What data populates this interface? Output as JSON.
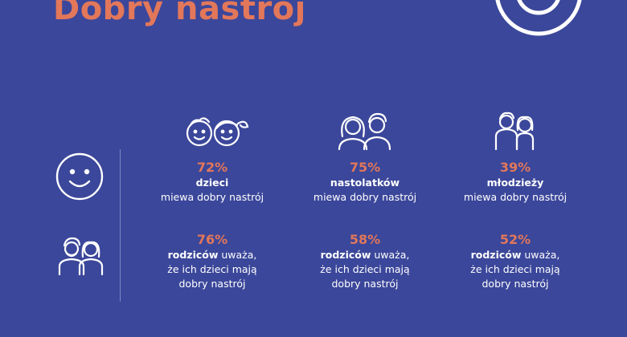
{
  "title": "Dobry nastrój",
  "columns": [
    {
      "icon": "kids-icon"
    },
    {
      "icon": "teenagers-icon"
    },
    {
      "icon": "young-adults-icon"
    }
  ],
  "rows": [
    {
      "icon": "smiley-icon",
      "cells": [
        {
          "pct": "72%",
          "group": "dzieci",
          "rest": "",
          "line2": "miewa dobry nastrój",
          "line3": ""
        },
        {
          "pct": "75%",
          "group": "nastolatków",
          "rest": "",
          "line2": "miewa dobry nastrój",
          "line3": ""
        },
        {
          "pct": "39%",
          "group": "młodzieży",
          "rest": "",
          "line2": "miewa dobry nastrój",
          "line3": ""
        }
      ]
    },
    {
      "icon": "parents-icon",
      "cells": [
        {
          "pct": "76%",
          "group": "rodziców",
          "rest": " uważa,",
          "line2": "że ich dzieci mają",
          "line3": "dobry nastrój"
        },
        {
          "pct": "58%",
          "group": "rodziców",
          "rest": " uważa,",
          "line2": "że ich dzieci mają",
          "line3": "dobry nastrój"
        },
        {
          "pct": "52%",
          "group": "rodziców",
          "rest": " uważa,",
          "line2": "że ich dzieci mają",
          "line3": "dobry nastrój"
        }
      ]
    }
  ],
  "colors": {
    "background": "#3b479a",
    "accent": "#e2775a",
    "text": "#ffffff"
  }
}
